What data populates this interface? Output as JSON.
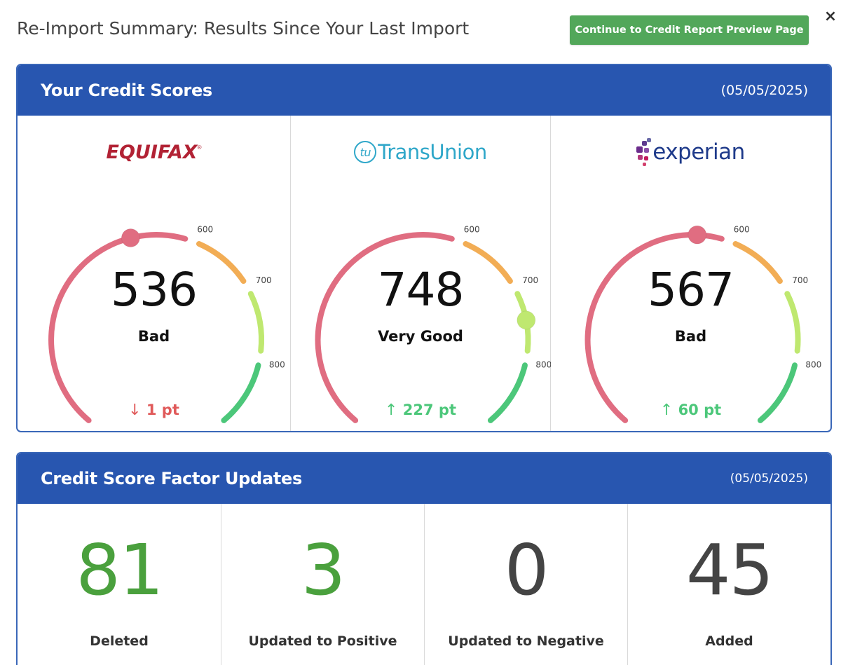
{
  "page_title": "Re-Import Summary: Results Since Your Last Import",
  "continue_button": "Continue to Credit Report Preview Page",
  "close_icon": "×",
  "colors": {
    "header_blue": "#2856b0",
    "button_green": "#52a75a",
    "bad_red": "#e06d81",
    "fair_orange": "#f2ad55",
    "good_lightgreen": "#bfe870",
    "excellent_green": "#4cc77a",
    "change_down": "#e05a5a",
    "change_up": "#4cc77a",
    "positive_number": "#4aa03d",
    "neutral_number": "#444444"
  },
  "scores_panel": {
    "title": "Your Credit Scores",
    "date": "(05/05/2025)",
    "gauge_ticks": [
      "600",
      "700",
      "800"
    ],
    "bureaus": [
      {
        "name": "EQUIFAX",
        "logo": "equifax-logo",
        "score": "536",
        "score_value": 536,
        "rating": "Bad",
        "change_arrow": "↓",
        "change": "1 pt",
        "direction": "down"
      },
      {
        "name": "TransUnion",
        "logo": "transunion-logo",
        "logo_mark": "tu",
        "score": "748",
        "score_value": 748,
        "rating": "Very Good",
        "change_arrow": "↑",
        "change": "227 pt",
        "direction": "up"
      },
      {
        "name": "experian",
        "logo": "experian-logo",
        "score": "567",
        "score_value": 567,
        "rating": "Bad",
        "change_arrow": "↑",
        "change": "60 pt",
        "direction": "up"
      }
    ]
  },
  "factors_panel": {
    "title": "Credit Score Factor Updates",
    "date": "(05/05/2025)",
    "items": [
      {
        "value": "81",
        "label": "Deleted",
        "tone": "positive"
      },
      {
        "value": "3",
        "label": "Updated to Positive",
        "tone": "positive"
      },
      {
        "value": "0",
        "label": "Updated to Negative",
        "tone": "neutral"
      },
      {
        "value": "45",
        "label": "Added",
        "tone": "neutral"
      }
    ]
  }
}
